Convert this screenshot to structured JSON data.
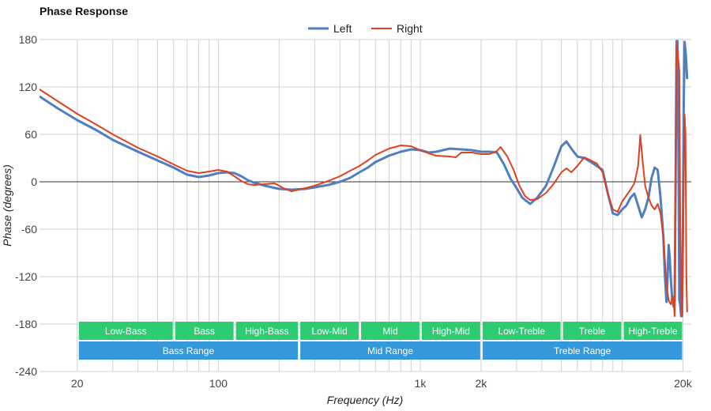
{
  "chart_data": {
    "type": "line",
    "title": "Phase Response",
    "xlabel": "Frequency (Hz)",
    "ylabel": "Phase (degrees)",
    "x_scale": "log",
    "xlim": [
      13,
      22000
    ],
    "ylim": [
      -240,
      180
    ],
    "grid": true,
    "legend_position": "top-center",
    "x_ticks": [
      {
        "value": 20,
        "label": "20"
      },
      {
        "value": 100,
        "label": "100"
      },
      {
        "value": 1000,
        "label": "1k"
      },
      {
        "value": 2000,
        "label": "2k"
      },
      {
        "value": 20000,
        "label": "20k"
      }
    ],
    "x_minor_grid": [
      20,
      30,
      40,
      50,
      60,
      70,
      80,
      90,
      100,
      200,
      300,
      400,
      500,
      600,
      700,
      800,
      900,
      1000,
      2000,
      3000,
      4000,
      5000,
      6000,
      7000,
      8000,
      9000,
      10000,
      20000
    ],
    "y_ticks": [
      180,
      120,
      60,
      0,
      -60,
      -120,
      -180,
      -240
    ],
    "series": [
      {
        "name": "Left",
        "color": "#4f7fc0",
        "points": [
          [
            13,
            108
          ],
          [
            16,
            93
          ],
          [
            20,
            78
          ],
          [
            25,
            65
          ],
          [
            30,
            53
          ],
          [
            40,
            38
          ],
          [
            50,
            27
          ],
          [
            60,
            18
          ],
          [
            70,
            9
          ],
          [
            80,
            6
          ],
          [
            90,
            8
          ],
          [
            100,
            11
          ],
          [
            110,
            12
          ],
          [
            120,
            11
          ],
          [
            130,
            7
          ],
          [
            140,
            2
          ],
          [
            150,
            -1
          ],
          [
            170,
            -5
          ],
          [
            200,
            -9
          ],
          [
            230,
            -10
          ],
          [
            270,
            -9
          ],
          [
            300,
            -7
          ],
          [
            350,
            -4
          ],
          [
            400,
            0
          ],
          [
            450,
            5
          ],
          [
            500,
            12
          ],
          [
            550,
            18
          ],
          [
            600,
            25
          ],
          [
            700,
            33
          ],
          [
            800,
            38
          ],
          [
            900,
            41
          ],
          [
            1000,
            40
          ],
          [
            1100,
            37
          ],
          [
            1200,
            38
          ],
          [
            1400,
            42
          ],
          [
            1600,
            41
          ],
          [
            1800,
            40
          ],
          [
            2000,
            38
          ],
          [
            2200,
            38
          ],
          [
            2400,
            37
          ],
          [
            2600,
            22
          ],
          [
            2800,
            4
          ],
          [
            3000,
            -8
          ],
          [
            3200,
            -20
          ],
          [
            3500,
            -28
          ],
          [
            3800,
            -20
          ],
          [
            4200,
            -5
          ],
          [
            4600,
            20
          ],
          [
            5000,
            45
          ],
          [
            5300,
            51
          ],
          [
            5600,
            42
          ],
          [
            6000,
            32
          ],
          [
            6500,
            30
          ],
          [
            7000,
            25
          ],
          [
            7500,
            20
          ],
          [
            8000,
            15
          ],
          [
            8500,
            -15
          ],
          [
            9000,
            -40
          ],
          [
            9500,
            -42
          ],
          [
            10000,
            -35
          ],
          [
            10500,
            -30
          ],
          [
            11000,
            -20
          ],
          [
            11500,
            -15
          ],
          [
            12000,
            -30
          ],
          [
            12500,
            -45
          ],
          [
            13000,
            -35
          ],
          [
            13500,
            -20
          ],
          [
            14000,
            5
          ],
          [
            14500,
            18
          ],
          [
            15000,
            15
          ],
          [
            15500,
            -20
          ],
          [
            16000,
            -70
          ],
          [
            16300,
            -120
          ],
          [
            16600,
            -152
          ],
          [
            16800,
            -120
          ],
          [
            17000,
            -80
          ],
          [
            17200,
            -95
          ],
          [
            17400,
            -120
          ],
          [
            17700,
            -150
          ],
          [
            18000,
            -158
          ],
          [
            18200,
            -150
          ],
          [
            18400,
            0
          ],
          [
            18600,
            178
          ],
          [
            18800,
            178
          ],
          [
            19000,
            60
          ],
          [
            19200,
            -150
          ],
          [
            19400,
            -155
          ],
          [
            19600,
            -170
          ],
          [
            19800,
            -170
          ],
          [
            20000,
            -60
          ],
          [
            20200,
            100
          ],
          [
            20400,
            177
          ],
          [
            20700,
            160
          ],
          [
            21000,
            130
          ]
        ]
      },
      {
        "name": "Right",
        "color": "#e0401e",
        "points": [
          [
            13,
            117
          ],
          [
            16,
            102
          ],
          [
            20,
            86
          ],
          [
            25,
            72
          ],
          [
            30,
            60
          ],
          [
            40,
            43
          ],
          [
            50,
            32
          ],
          [
            60,
            22
          ],
          [
            70,
            14
          ],
          [
            80,
            11
          ],
          [
            90,
            13
          ],
          [
            100,
            15
          ],
          [
            110,
            13
          ],
          [
            120,
            7
          ],
          [
            130,
            1
          ],
          [
            140,
            -3
          ],
          [
            150,
            -4
          ],
          [
            170,
            -3
          ],
          [
            190,
            -2
          ],
          [
            210,
            -8
          ],
          [
            230,
            -12
          ],
          [
            260,
            -9
          ],
          [
            300,
            -5
          ],
          [
            350,
            1
          ],
          [
            400,
            7
          ],
          [
            450,
            14
          ],
          [
            500,
            20
          ],
          [
            550,
            27
          ],
          [
            600,
            34
          ],
          [
            700,
            42
          ],
          [
            800,
            46
          ],
          [
            900,
            45
          ],
          [
            1000,
            40
          ],
          [
            1100,
            36
          ],
          [
            1200,
            33
          ],
          [
            1400,
            32
          ],
          [
            1500,
            31
          ],
          [
            1600,
            37
          ],
          [
            1800,
            37
          ],
          [
            2000,
            35
          ],
          [
            2200,
            35
          ],
          [
            2400,
            39
          ],
          [
            2500,
            44
          ],
          [
            2700,
            32
          ],
          [
            2900,
            15
          ],
          [
            3100,
            -5
          ],
          [
            3300,
            -18
          ],
          [
            3500,
            -23
          ],
          [
            3800,
            -22
          ],
          [
            4200,
            -14
          ],
          [
            4600,
            -2
          ],
          [
            5000,
            12
          ],
          [
            5300,
            17
          ],
          [
            5600,
            12
          ],
          [
            6000,
            20
          ],
          [
            6500,
            31
          ],
          [
            7000,
            27
          ],
          [
            7500,
            23
          ],
          [
            8000,
            12
          ],
          [
            8500,
            -15
          ],
          [
            9000,
            -35
          ],
          [
            9500,
            -38
          ],
          [
            10000,
            -25
          ],
          [
            11000,
            -10
          ],
          [
            11500,
            -2
          ],
          [
            12000,
            20
          ],
          [
            12300,
            59
          ],
          [
            12600,
            30
          ],
          [
            13000,
            -5
          ],
          [
            13500,
            -20
          ],
          [
            14000,
            -30
          ],
          [
            14500,
            -35
          ],
          [
            15000,
            -28
          ],
          [
            15500,
            -40
          ],
          [
            16000,
            -70
          ],
          [
            16300,
            -100
          ],
          [
            16600,
            -130
          ],
          [
            17000,
            -150
          ],
          [
            17400,
            -155
          ],
          [
            17800,
            -145
          ],
          [
            18000,
            -150
          ],
          [
            18200,
            -170
          ],
          [
            18400,
            0
          ],
          [
            18600,
            175
          ],
          [
            18800,
            165
          ],
          [
            19200,
            140
          ],
          [
            19400,
            -40
          ],
          [
            19600,
            -165
          ],
          [
            19800,
            -170
          ],
          [
            20000,
            -100
          ],
          [
            20200,
            0
          ],
          [
            20400,
            85
          ],
          [
            20600,
            60
          ],
          [
            20800,
            -120
          ],
          [
            21000,
            -165
          ]
        ]
      }
    ],
    "bands": {
      "sub": [
        {
          "label": "Low-Bass",
          "from": 20,
          "to": 60
        },
        {
          "label": "Bass",
          "from": 60,
          "to": 120
        },
        {
          "label": "High-Bass",
          "from": 120,
          "to": 250
        },
        {
          "label": "Low-Mid",
          "from": 250,
          "to": 500
        },
        {
          "label": "Mid",
          "from": 500,
          "to": 1000
        },
        {
          "label": "High-Mid",
          "from": 1000,
          "to": 2000
        },
        {
          "label": "Low-Treble",
          "from": 2000,
          "to": 5000
        },
        {
          "label": "Treble",
          "from": 5000,
          "to": 10000
        },
        {
          "label": "High-Treble",
          "from": 10000,
          "to": 20000
        }
      ],
      "range": [
        {
          "label": "Bass Range",
          "from": 20,
          "to": 250
        },
        {
          "label": "Mid Range",
          "from": 250,
          "to": 2000
        },
        {
          "label": "Treble Range",
          "from": 2000,
          "to": 20000
        }
      ],
      "sub_color": "#2ecc71",
      "range_color": "#3498db"
    }
  }
}
